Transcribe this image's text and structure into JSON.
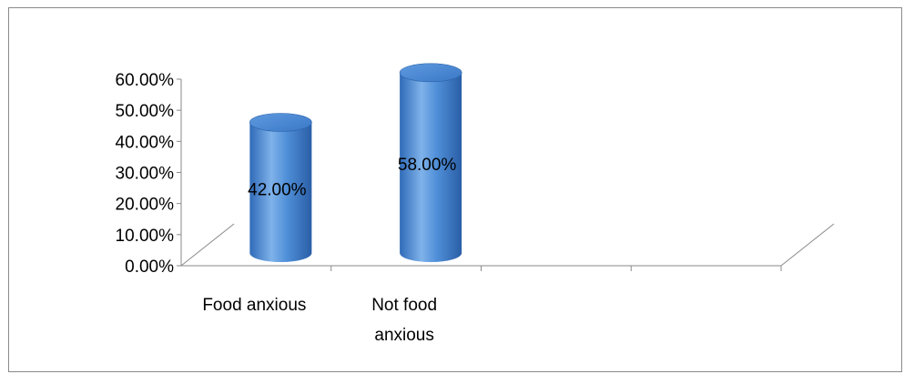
{
  "chart_data": {
    "type": "bar",
    "style": "3d-cylinder",
    "categories": [
      "Food anxious",
      "Not food anxious"
    ],
    "values": [
      42.0,
      58.0
    ],
    "data_labels": [
      "42.00%",
      "58.00%"
    ],
    "title": "",
    "xlabel": "",
    "ylabel": "",
    "ylim": [
      0,
      60
    ],
    "yticks": [
      "0.00%",
      "10.00%",
      "20.00%",
      "30.00%",
      "40.00%",
      "50.00%",
      "60.00%"
    ],
    "grid": false,
    "legend": "none",
    "colors": {
      "bar": "#4a8bd6",
      "bar_light": "#8cbcf0",
      "bar_dark": "#2a66b2",
      "axis": "#8a8a8a"
    }
  }
}
